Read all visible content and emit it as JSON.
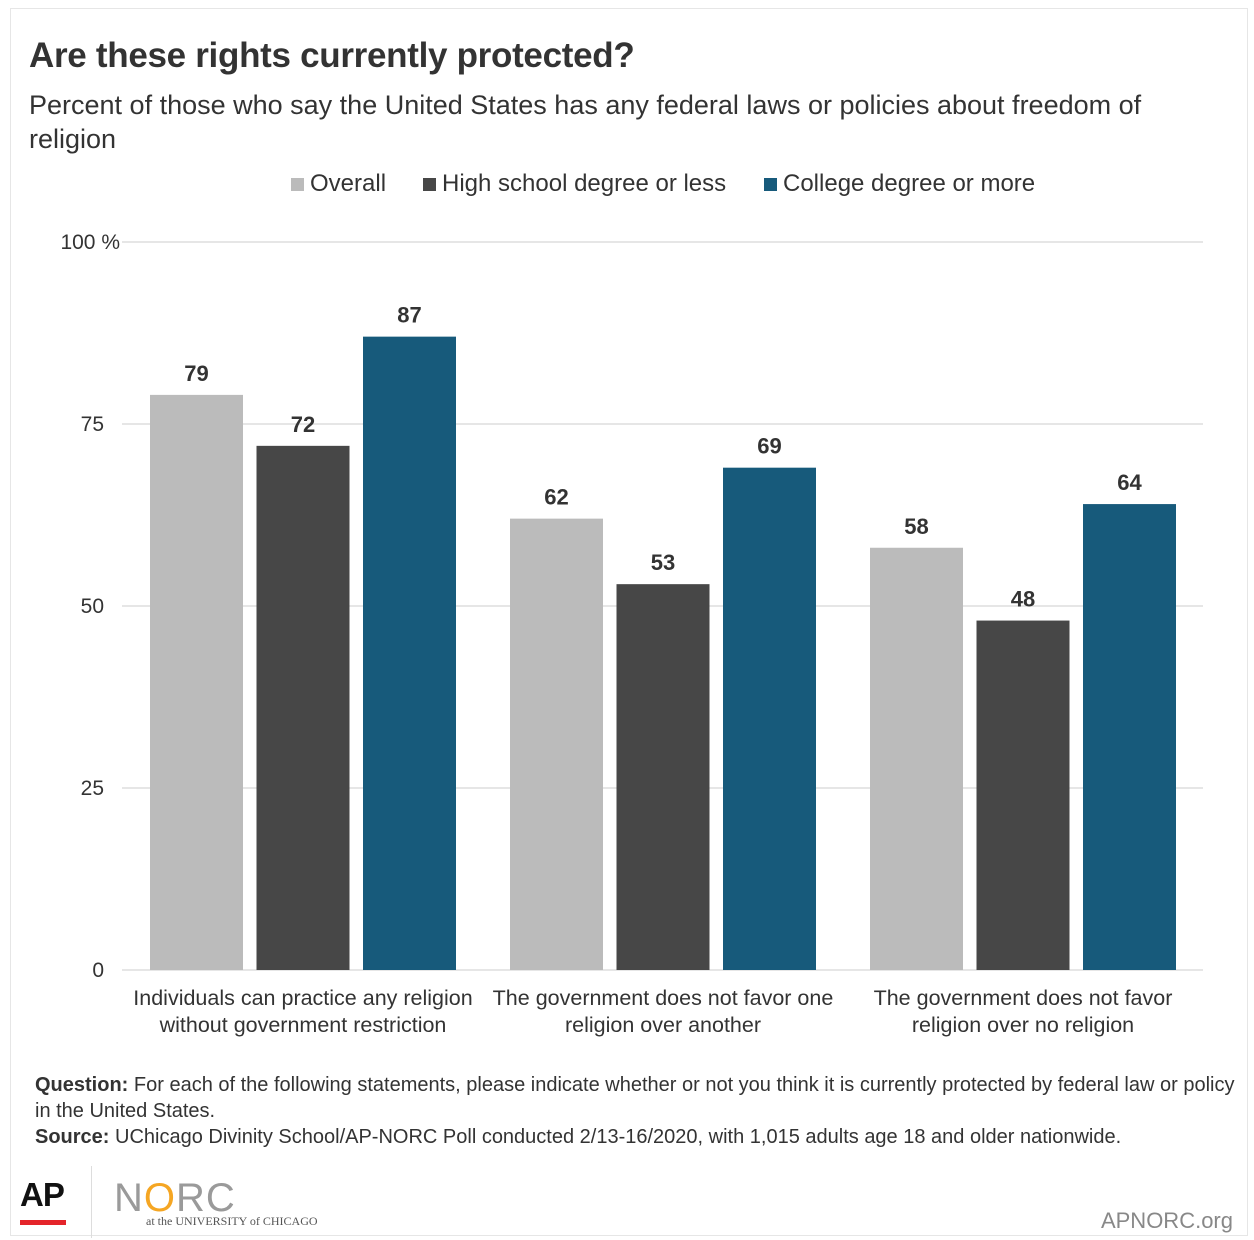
{
  "chart_data": {
    "type": "bar",
    "title": "Are these rights currently protected?",
    "subtitle": "Percent of those who say the United States has any federal laws or policies about freedom of religion",
    "categories": [
      [
        "Individuals can practice any religion",
        "without government restriction"
      ],
      [
        "The government does not favor one",
        "religion over another"
      ],
      [
        "The government does not favor",
        "religion over no religion"
      ]
    ],
    "series": [
      {
        "name": "Overall",
        "color": "#bbbbbb",
        "values": [
          79,
          62,
          58
        ]
      },
      {
        "name": "High school degree or less",
        "color": "#474747",
        "values": [
          72,
          53,
          48
        ]
      },
      {
        "name": "College degree or more",
        "color": "#175a7b",
        "values": [
          87,
          69,
          64
        ]
      }
    ],
    "ylim": [
      0,
      100
    ],
    "yticks": [
      0,
      25,
      50,
      75,
      100
    ],
    "ytick_labels": [
      "0",
      "25",
      "50",
      "75",
      "100 %"
    ],
    "grid": true,
    "legend_position": "top"
  },
  "notes": {
    "question_label": "Question:",
    "question_text": " For each of the following statements, please indicate whether or not you think it is currently protected by federal law or policy in the United States.",
    "source_label": "Source:",
    "source_text": " UChicago Divinity School/AP-NORC Poll conducted 2/13-16/2020, with 1,015 adults age 18 and older nationwide."
  },
  "footer": {
    "ap_logo": "AP",
    "norc_logo": "NORC",
    "norc_sub": "at the UNIVERSITY of CHICAGO",
    "site": "APNORC.org"
  }
}
